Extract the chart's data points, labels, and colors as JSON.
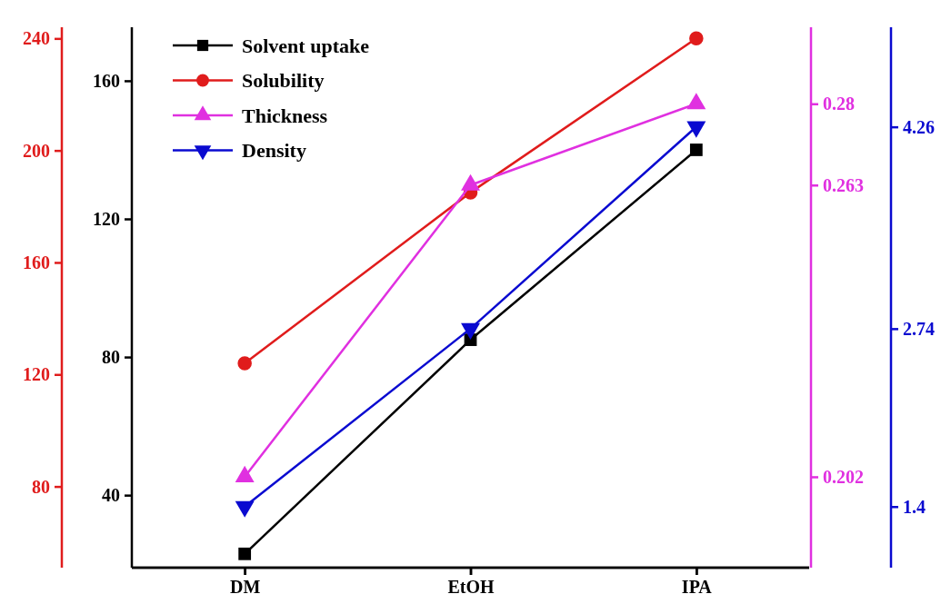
{
  "chart_data": [
    {
      "type": "line",
      "categories": [
        "DM",
        "EtOH",
        "IPA"
      ],
      "series": [
        {
          "name": "Solvent uptake",
          "color": "#000000",
          "values": [
            23,
            85,
            140
          ],
          "marker": "square"
        },
        {
          "name": "Solubility",
          "color": "#e01c1c",
          "values": [
            124,
            185,
            240
          ],
          "marker": "circle",
          "axis": "y2"
        },
        {
          "name": "Thickness",
          "color": "#e030e0",
          "values": [
            0.202,
            0.263,
            0.28
          ],
          "marker": "triangle",
          "axis": "y3"
        }
      ],
      "ylim": [
        19,
        175.5
      ],
      "yticks": [
        40,
        80,
        120,
        160
      ],
      "y2lim": [
        51,
        244
      ],
      "y2ticks": [
        80,
        120,
        160,
        200,
        240
      ],
      "y3lim": [
        0.183,
        0.296
      ],
      "y3ticks": [
        0.202,
        0.263,
        0.28
      ],
      "legend": "top left"
    },
    {
      "type": "line",
      "categories": [
        null,
        null,
        null
      ],
      "series": [
        {
          "name": "Density",
          "color": "#0a0ad0",
          "values": [
            1.4,
            2.74,
            4.26
          ],
          "marker": "triangle-down"
        }
      ],
      "ylim": [
        0.94,
        5.01
      ],
      "yticks": [
        1.4,
        2.74,
        4.26
      ],
      "tick_labels": "y",
      "legend": "top left"
    }
  ]
}
